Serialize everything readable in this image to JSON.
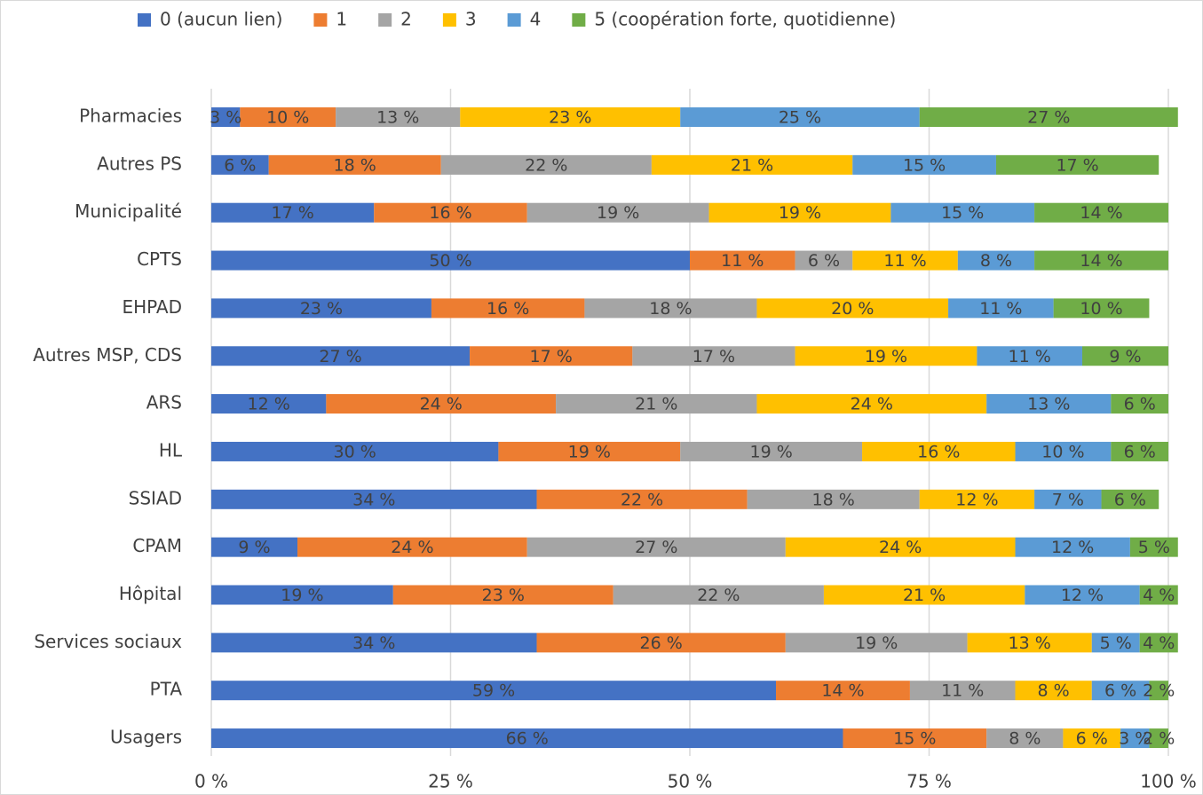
{
  "chart_data": {
    "type": "stacked_barh",
    "categories": [
      "Pharmacies",
      "Autres PS",
      "Municipalité",
      "CPTS",
      "EHPAD",
      "Autres MSP, CDS",
      "ARS",
      "HL",
      "SSIAD",
      "CPAM",
      "Hôpital",
      "Services sociaux",
      "PTA",
      "Usagers"
    ],
    "series": [
      {
        "name": "0 (aucun lien)",
        "color": "#4472c4",
        "values": [
          3,
          6,
          17,
          50,
          23,
          27,
          12,
          30,
          34,
          9,
          19,
          34,
          59,
          66
        ],
        "value_labels": [
          "3 %",
          "6 %",
          "17 %",
          "50 %",
          "23 %",
          "27 %",
          "12 %",
          "30 %",
          "34 %",
          "9 %",
          "19 %",
          "34 %",
          "59 %",
          "66 %"
        ]
      },
      {
        "name": "1",
        "color": "#ed7d31",
        "values": [
          10,
          18,
          16,
          11,
          16,
          17,
          24,
          19,
          22,
          24,
          23,
          26,
          14,
          15
        ],
        "value_labels": [
          "10 %",
          "18 %",
          "16 %",
          "11 %",
          "16 %",
          "17 %",
          "24 %",
          "19 %",
          "22 %",
          "24 %",
          "23 %",
          "26 %",
          "14 %",
          "15 %"
        ]
      },
      {
        "name": "2",
        "color": "#a5a5a5",
        "values": [
          13,
          22,
          19,
          6,
          18,
          17,
          21,
          19,
          18,
          27,
          22,
          19,
          11,
          8
        ],
        "value_labels": [
          "13 %",
          "22 %",
          "19 %",
          "6 %",
          "18 %",
          "17 %",
          "21 %",
          "19 %",
          "18 %",
          "27 %",
          "22 %",
          "19 %",
          "11 %",
          "8 %"
        ]
      },
      {
        "name": "3",
        "color": "#ffc000",
        "values": [
          23,
          21,
          19,
          11,
          20,
          19,
          24,
          16,
          12,
          24,
          21,
          13,
          8,
          6
        ],
        "value_labels": [
          "23 %",
          "21 %",
          "19 %",
          "11 %",
          "20 %",
          "19 %",
          "24 %",
          "16 %",
          "12 %",
          "24 %",
          "21 %",
          "13 %",
          "8 %",
          "6 %"
        ]
      },
      {
        "name": "4",
        "color": "#5b9bd5",
        "values": [
          25,
          15,
          15,
          8,
          11,
          11,
          13,
          10,
          7,
          12,
          12,
          5,
          6,
          3
        ],
        "value_labels": [
          "25 %",
          "15 %",
          "15 %",
          "8 %",
          "11 %",
          "11 %",
          "13 %",
          "10 %",
          "7 %",
          "12 %",
          "12 %",
          "5 %",
          "6 %",
          "3 %"
        ]
      },
      {
        "name": "5 (coopération forte, quotidienne)",
        "color": "#70ad47",
        "values": [
          27,
          17,
          14,
          14,
          10,
          9,
          6,
          6,
          6,
          5,
          4,
          4,
          2,
          2
        ],
        "value_labels": [
          "27 %",
          "17 %",
          "14 %",
          "14 %",
          "10 %",
          "9 %",
          "6 %",
          "6 %",
          "6 %",
          "5 %",
          "4 %",
          "4 %",
          "2 %",
          "2 %"
        ]
      }
    ],
    "xlim": [
      0,
      100
    ],
    "xticks": [
      {
        "value": 0,
        "label": "0 %"
      },
      {
        "value": 25,
        "label": "25 %"
      },
      {
        "value": 50,
        "label": "50 %"
      },
      {
        "value": 75,
        "label": "75 %"
      },
      {
        "value": 100,
        "label": "100 %"
      }
    ],
    "grid": true,
    "legend": "top"
  }
}
